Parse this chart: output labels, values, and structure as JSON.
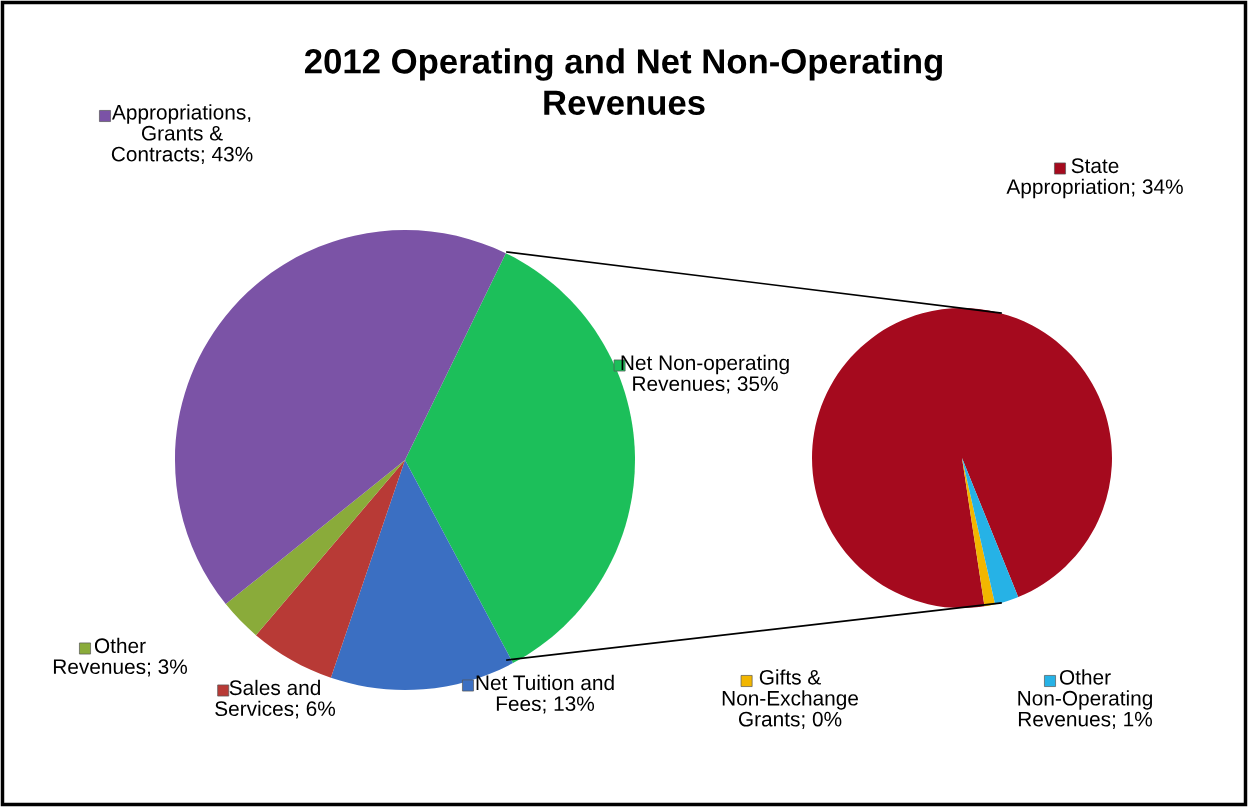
{
  "chart_data": [
    {
      "type": "pie",
      "title": "2012 Operating and Net Non-Operating Revenues",
      "categories": [
        "Net Non-operating Revenues",
        "Net Tuition and Fees",
        "Sales and Services",
        "Other Revenues",
        "Appropriations, Grants & Contracts"
      ],
      "values": [
        35,
        13,
        6,
        3,
        43
      ],
      "value_labels": [
        "35%",
        "13%",
        "6%",
        "3%",
        "43%"
      ],
      "colors": [
        "#1cbf5a",
        "#3b6fc2",
        "#b83a36",
        "#8aab3a",
        "#7b53a6"
      ],
      "legend": "top right"
    },
    {
      "type": "pie",
      "categories": [
        "State Appropriation",
        "Gifts & Non-Exchange Grants",
        "Other Non-Operating Revenues"
      ],
      "values": [
        33.7,
        0.4,
        0.9
      ],
      "value_labels": [
        "34%",
        "0%",
        "1%"
      ],
      "colors": [
        "#a50a1e",
        "#f2b600",
        "#26b2e6"
      ],
      "legend": "top left"
    }
  ]
}
